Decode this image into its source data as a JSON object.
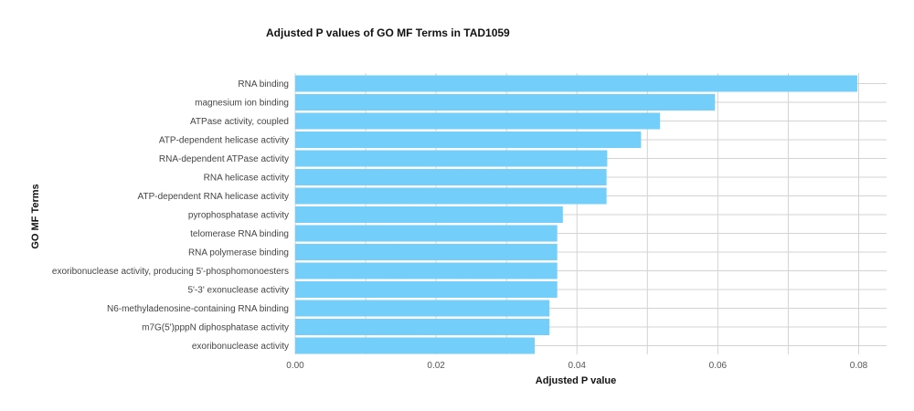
{
  "chart_data": {
    "type": "bar",
    "orientation": "horizontal",
    "title": "Adjusted P values of GO MF Terms in TAD1059",
    "xlabel": "Adjusted P value",
    "ylabel": "GO MF Terms",
    "xlim": [
      0,
      0.084
    ],
    "xticks": [
      0,
      0.02,
      0.04,
      0.06,
      0.08
    ],
    "xtick_labels": [
      "0.00",
      "0.02",
      "0.04",
      "0.06",
      "0.08"
    ],
    "grid": true,
    "bar_color": "#74CEFA",
    "grid_color": "#D3D3D3",
    "categories": [
      "RNA binding",
      "magnesium ion binding",
      "ATPase activity, coupled",
      "ATP-dependent helicase activity",
      "RNA-dependent ATPase activity",
      "RNA helicase activity",
      "ATP-dependent RNA helicase activity",
      "pyrophosphatase activity",
      "telomerase RNA binding",
      "RNA polymerase binding",
      "exoribonuclease activity, producing 5'-phosphomonoesters",
      "5'-3' exonuclease activity",
      "N6-methyladenosine-containing RNA binding",
      "m7G(5')pppN diphosphatase activity",
      "exoribonuclease activity"
    ],
    "values": [
      0.0798,
      0.0596,
      0.0518,
      0.0491,
      0.0443,
      0.0442,
      0.0442,
      0.038,
      0.0372,
      0.0372,
      0.0372,
      0.0372,
      0.0361,
      0.0361,
      0.034
    ]
  }
}
